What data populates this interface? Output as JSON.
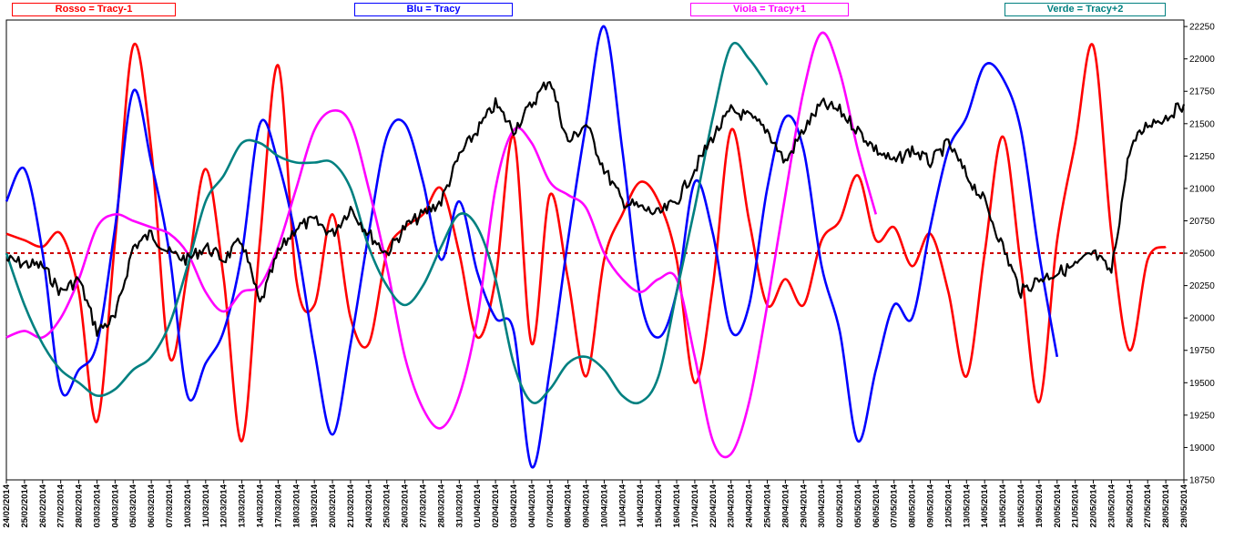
{
  "chart_data": {
    "type": "line",
    "legend": [
      {
        "label": "Rosso = Tracy-1",
        "color": "#ff0000"
      },
      {
        "label": "Blu = Tracy",
        "color": "#0000ff"
      },
      {
        "label": "Viola = Tracy+1",
        "color": "#ff00ff"
      },
      {
        "label": "Verde = Tracy+2",
        "color": "#008080"
      }
    ],
    "ylim": [
      18750,
      22300
    ],
    "yticks": [
      "18750",
      "19000",
      "19250",
      "19500",
      "19750",
      "20000",
      "20250",
      "20500",
      "20750",
      "21000",
      "21250",
      "21500",
      "21750",
      "22000",
      "22250"
    ],
    "reference_line": {
      "value": 20500,
      "color": "#cc0000"
    },
    "dates": [
      "24/02/2014",
      "25/02/2014",
      "26/02/2014",
      "27/02/2014",
      "28/02/2014",
      "03/03/2014",
      "04/03/2014",
      "05/03/2014",
      "06/03/2014",
      "07/03/2014",
      "10/03/2014",
      "11/03/2014",
      "12/03/2014",
      "13/03/2014",
      "14/03/2014",
      "17/03/2014",
      "18/03/2014",
      "19/03/2014",
      "20/03/2014",
      "21/03/2014",
      "24/03/2014",
      "25/03/2014",
      "26/03/2014",
      "27/03/2014",
      "28/03/2014",
      "31/03/2014",
      "01/04/2014",
      "02/04/2014",
      "03/04/2014",
      "04/04/2014",
      "07/04/2014",
      "08/04/2014",
      "09/04/2014",
      "10/04/2014",
      "11/04/2014",
      "14/04/2014",
      "15/04/2014",
      "16/04/2014",
      "17/04/2014",
      "22/04/2014",
      "23/04/2014",
      "24/04/2014",
      "25/04/2014",
      "28/04/2014",
      "29/04/2014",
      "30/04/2014",
      "02/05/2014",
      "05/05/2014",
      "06/05/2014",
      "07/05/2014",
      "08/05/2014",
      "09/05/2014",
      "12/05/2014",
      "13/05/2014",
      "14/05/2014",
      "15/05/2014",
      "16/05/2014",
      "19/05/2014",
      "20/05/2014",
      "21/05/2014",
      "22/05/2014",
      "23/05/2014",
      "26/05/2014",
      "27/05/2014",
      "28/05/2014",
      "29/05/2014"
    ],
    "series": [
      {
        "name": "Price",
        "color": "#000000",
        "width": 2.2,
        "points": [
          [
            0,
            20450
          ],
          [
            1,
            20420
          ],
          [
            2,
            20400
          ],
          [
            3,
            20200
          ],
          [
            4,
            20300
          ],
          [
            5,
            19900
          ],
          [
            6,
            20000
          ],
          [
            7,
            20550
          ],
          [
            8,
            20650
          ],
          [
            9,
            20500
          ],
          [
            10,
            20450
          ],
          [
            11,
            20550
          ],
          [
            12,
            20450
          ],
          [
            13,
            20600
          ],
          [
            14,
            20100
          ],
          [
            15,
            20500
          ],
          [
            16,
            20700
          ],
          [
            17,
            20750
          ],
          [
            18,
            20650
          ],
          [
            19,
            20850
          ],
          [
            20,
            20650
          ],
          [
            21,
            20500
          ],
          [
            22,
            20700
          ],
          [
            23,
            20800
          ],
          [
            24,
            20900
          ],
          [
            25,
            21250
          ],
          [
            26,
            21450
          ],
          [
            27,
            21650
          ],
          [
            28,
            21450
          ],
          [
            29,
            21650
          ],
          [
            30,
            21850
          ],
          [
            31,
            21350
          ],
          [
            32,
            21500
          ],
          [
            33,
            21150
          ],
          [
            34,
            20900
          ],
          [
            35,
            20850
          ],
          [
            36,
            20800
          ],
          [
            37,
            20900
          ],
          [
            38,
            21150
          ],
          [
            39,
            21400
          ],
          [
            40,
            21600
          ],
          [
            41,
            21550
          ],
          [
            42,
            21450
          ],
          [
            43,
            21200
          ],
          [
            44,
            21450
          ],
          [
            45,
            21650
          ],
          [
            46,
            21600
          ],
          [
            47,
            21450
          ],
          [
            48,
            21300
          ],
          [
            49,
            21200
          ],
          [
            50,
            21300
          ],
          [
            51,
            21200
          ],
          [
            52,
            21350
          ],
          [
            53,
            21100
          ],
          [
            54,
            20900
          ],
          [
            55,
            20550
          ],
          [
            56,
            20200
          ],
          [
            57,
            20300
          ],
          [
            58,
            20350
          ],
          [
            59,
            20400
          ],
          [
            60,
            20500
          ],
          [
            61,
            20350
          ],
          [
            62,
            21300
          ],
          [
            63,
            21500
          ],
          [
            64,
            21550
          ],
          [
            65,
            21650
          ]
        ]
      },
      {
        "name": "Rosso = Tracy-1",
        "color": "#ff0000",
        "width": 2.6,
        "points": [
          [
            0,
            20650
          ],
          [
            1,
            20600
          ],
          [
            2,
            20550
          ],
          [
            3,
            20650
          ],
          [
            4,
            20200
          ],
          [
            5,
            19200
          ],
          [
            6,
            20600
          ],
          [
            7,
            22100
          ],
          [
            8,
            21300
          ],
          [
            9,
            19700
          ],
          [
            10,
            20350
          ],
          [
            11,
            21150
          ],
          [
            12,
            20300
          ],
          [
            13,
            19050
          ],
          [
            14,
            20600
          ],
          [
            15,
            21950
          ],
          [
            16,
            20300
          ],
          [
            17,
            20100
          ],
          [
            18,
            20800
          ],
          [
            19,
            20000
          ],
          [
            20,
            19800
          ],
          [
            21,
            20500
          ],
          [
            22,
            20700
          ],
          [
            23,
            20800
          ],
          [
            24,
            21000
          ],
          [
            25,
            20500
          ],
          [
            26,
            19850
          ],
          [
            27,
            20300
          ],
          [
            28,
            21400
          ],
          [
            29,
            19800
          ],
          [
            30,
            20950
          ],
          [
            31,
            20300
          ],
          [
            32,
            19550
          ],
          [
            33,
            20450
          ],
          [
            34,
            20800
          ],
          [
            35,
            21050
          ],
          [
            36,
            20900
          ],
          [
            37,
            20450
          ],
          [
            38,
            19500
          ],
          [
            39,
            20250
          ],
          [
            40,
            21450
          ],
          [
            41,
            20750
          ],
          [
            42,
            20100
          ],
          [
            43,
            20300
          ],
          [
            44,
            20100
          ],
          [
            45,
            20600
          ],
          [
            46,
            20750
          ],
          [
            47,
            21100
          ],
          [
            48,
            20600
          ],
          [
            49,
            20700
          ],
          [
            50,
            20400
          ],
          [
            51,
            20650
          ],
          [
            52,
            20200
          ],
          [
            53,
            19550
          ],
          [
            54,
            20500
          ],
          [
            55,
            21400
          ],
          [
            56,
            20400
          ],
          [
            57,
            19350
          ],
          [
            58,
            20600
          ],
          [
            59,
            21350
          ],
          [
            60,
            22100
          ],
          [
            61,
            20650
          ],
          [
            62,
            19750
          ],
          [
            63,
            20450
          ],
          [
            64,
            20550
          ]
        ]
      },
      {
        "name": "Blu = Tracy",
        "color": "#0000ff",
        "width": 2.6,
        "points": [
          [
            0,
            20900
          ],
          [
            1,
            21150
          ],
          [
            2,
            20500
          ],
          [
            3,
            19450
          ],
          [
            4,
            19600
          ],
          [
            5,
            19800
          ],
          [
            6,
            20700
          ],
          [
            7,
            21750
          ],
          [
            8,
            21200
          ],
          [
            9,
            20500
          ],
          [
            10,
            19400
          ],
          [
            11,
            19650
          ],
          [
            12,
            19900
          ],
          [
            13,
            20500
          ],
          [
            14,
            21500
          ],
          [
            15,
            21200
          ],
          [
            16,
            20600
          ],
          [
            17,
            19750
          ],
          [
            18,
            19100
          ],
          [
            19,
            19800
          ],
          [
            20,
            20650
          ],
          [
            21,
            21400
          ],
          [
            22,
            21500
          ],
          [
            23,
            21050
          ],
          [
            24,
            20450
          ],
          [
            25,
            20900
          ],
          [
            26,
            20350
          ],
          [
            27,
            20000
          ],
          [
            28,
            19900
          ],
          [
            29,
            18850
          ],
          [
            30,
            19600
          ],
          [
            31,
            20600
          ],
          [
            32,
            21500
          ],
          [
            33,
            22250
          ],
          [
            34,
            21300
          ],
          [
            35,
            20150
          ],
          [
            36,
            19850
          ],
          [
            37,
            20200
          ],
          [
            38,
            21050
          ],
          [
            39,
            20650
          ],
          [
            40,
            19900
          ],
          [
            41,
            20100
          ],
          [
            42,
            21000
          ],
          [
            43,
            21550
          ],
          [
            44,
            21300
          ],
          [
            45,
            20400
          ],
          [
            46,
            19900
          ],
          [
            47,
            19050
          ],
          [
            48,
            19600
          ],
          [
            49,
            20100
          ],
          [
            50,
            20000
          ],
          [
            51,
            20700
          ],
          [
            52,
            21300
          ],
          [
            53,
            21550
          ],
          [
            54,
            21950
          ],
          [
            55,
            21850
          ],
          [
            56,
            21450
          ],
          [
            57,
            20500
          ],
          [
            58,
            19700
          ]
        ]
      },
      {
        "name": "Viola = Tracy+1",
        "color": "#ff00ff",
        "width": 2.6,
        "points": [
          [
            0,
            19850
          ],
          [
            1,
            19900
          ],
          [
            2,
            19850
          ],
          [
            3,
            20000
          ],
          [
            4,
            20300
          ],
          [
            5,
            20700
          ],
          [
            6,
            20800
          ],
          [
            7,
            20750
          ],
          [
            8,
            20700
          ],
          [
            9,
            20650
          ],
          [
            10,
            20500
          ],
          [
            11,
            20200
          ],
          [
            12,
            20050
          ],
          [
            13,
            20200
          ],
          [
            14,
            20250
          ],
          [
            15,
            20550
          ],
          [
            16,
            21000
          ],
          [
            17,
            21450
          ],
          [
            18,
            21600
          ],
          [
            19,
            21500
          ],
          [
            20,
            21000
          ],
          [
            21,
            20400
          ],
          [
            22,
            19700
          ],
          [
            23,
            19300
          ],
          [
            24,
            19150
          ],
          [
            25,
            19400
          ],
          [
            26,
            20000
          ],
          [
            27,
            21000
          ],
          [
            28,
            21450
          ],
          [
            29,
            21350
          ],
          [
            30,
            21050
          ],
          [
            31,
            20950
          ],
          [
            32,
            20850
          ],
          [
            33,
            20500
          ],
          [
            34,
            20300
          ],
          [
            35,
            20200
          ],
          [
            36,
            20300
          ],
          [
            37,
            20300
          ],
          [
            38,
            19700
          ],
          [
            39,
            19050
          ],
          [
            40,
            18950
          ],
          [
            41,
            19350
          ],
          [
            42,
            20100
          ],
          [
            43,
            20950
          ],
          [
            44,
            21750
          ],
          [
            45,
            22200
          ],
          [
            46,
            21900
          ],
          [
            47,
            21300
          ],
          [
            48,
            20800
          ]
        ]
      },
      {
        "name": "Verde = Tracy+2",
        "color": "#008080",
        "width": 2.6,
        "points": [
          [
            0,
            20500
          ],
          [
            1,
            20100
          ],
          [
            2,
            19800
          ],
          [
            3,
            19600
          ],
          [
            4,
            19500
          ],
          [
            5,
            19400
          ],
          [
            6,
            19450
          ],
          [
            7,
            19600
          ],
          [
            8,
            19700
          ],
          [
            9,
            19950
          ],
          [
            10,
            20400
          ],
          [
            11,
            20900
          ],
          [
            12,
            21100
          ],
          [
            13,
            21350
          ],
          [
            14,
            21350
          ],
          [
            15,
            21250
          ],
          [
            16,
            21200
          ],
          [
            17,
            21200
          ],
          [
            18,
            21200
          ],
          [
            19,
            21000
          ],
          [
            20,
            20550
          ],
          [
            21,
            20250
          ],
          [
            22,
            20100
          ],
          [
            23,
            20250
          ],
          [
            24,
            20550
          ],
          [
            25,
            20800
          ],
          [
            26,
            20700
          ],
          [
            27,
            20300
          ],
          [
            28,
            19650
          ],
          [
            29,
            19350
          ],
          [
            30,
            19450
          ],
          [
            31,
            19650
          ],
          [
            32,
            19700
          ],
          [
            33,
            19600
          ],
          [
            34,
            19400
          ],
          [
            35,
            19350
          ],
          [
            36,
            19550
          ],
          [
            37,
            20200
          ],
          [
            38,
            20850
          ],
          [
            39,
            21550
          ],
          [
            40,
            22100
          ],
          [
            41,
            22000
          ],
          [
            42,
            21800
          ]
        ]
      }
    ]
  }
}
